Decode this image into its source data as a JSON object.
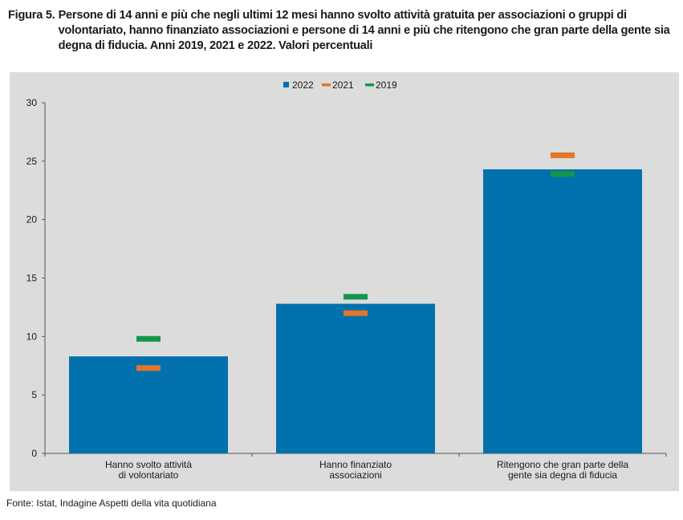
{
  "figure": {
    "label": "Figura 5.",
    "text": "Persone di 14 anni e più che negli ultimi 12 mesi hanno svolto attività gratuita per associazioni o gruppi di volontariato, hanno finanziato associazioni e persone di 14 anni e più che ritengono che gran parte della gente sia degna di fiducia. Anni 2019, 2021 e 2022. Valori percentuali"
  },
  "source": "Fonte: Istat, Indagine Aspetti della vita quotidiana",
  "chart_data": {
    "type": "bar",
    "categories": [
      [
        "Hanno svolto attività",
        "di volontariato"
      ],
      [
        "Hanno finanziato",
        "associazioni"
      ],
      [
        "Ritengono che gran parte della",
        "gente sia degna di fiducia"
      ]
    ],
    "series": [
      {
        "name": "2022",
        "kind": "bar",
        "color": "#0071ad",
        "values": [
          8.3,
          12.8,
          24.3
        ]
      },
      {
        "name": "2021",
        "kind": "marker",
        "color": "#e57528",
        "values": [
          7.3,
          12.0,
          25.5
        ]
      },
      {
        "name": "2019",
        "kind": "marker",
        "color": "#14964a",
        "values": [
          9.8,
          13.4,
          23.9
        ]
      }
    ],
    "ylim": [
      0,
      30
    ],
    "yticks": [
      0,
      5,
      10,
      15,
      20,
      25,
      30
    ],
    "grid": false,
    "legend": "top-center"
  }
}
